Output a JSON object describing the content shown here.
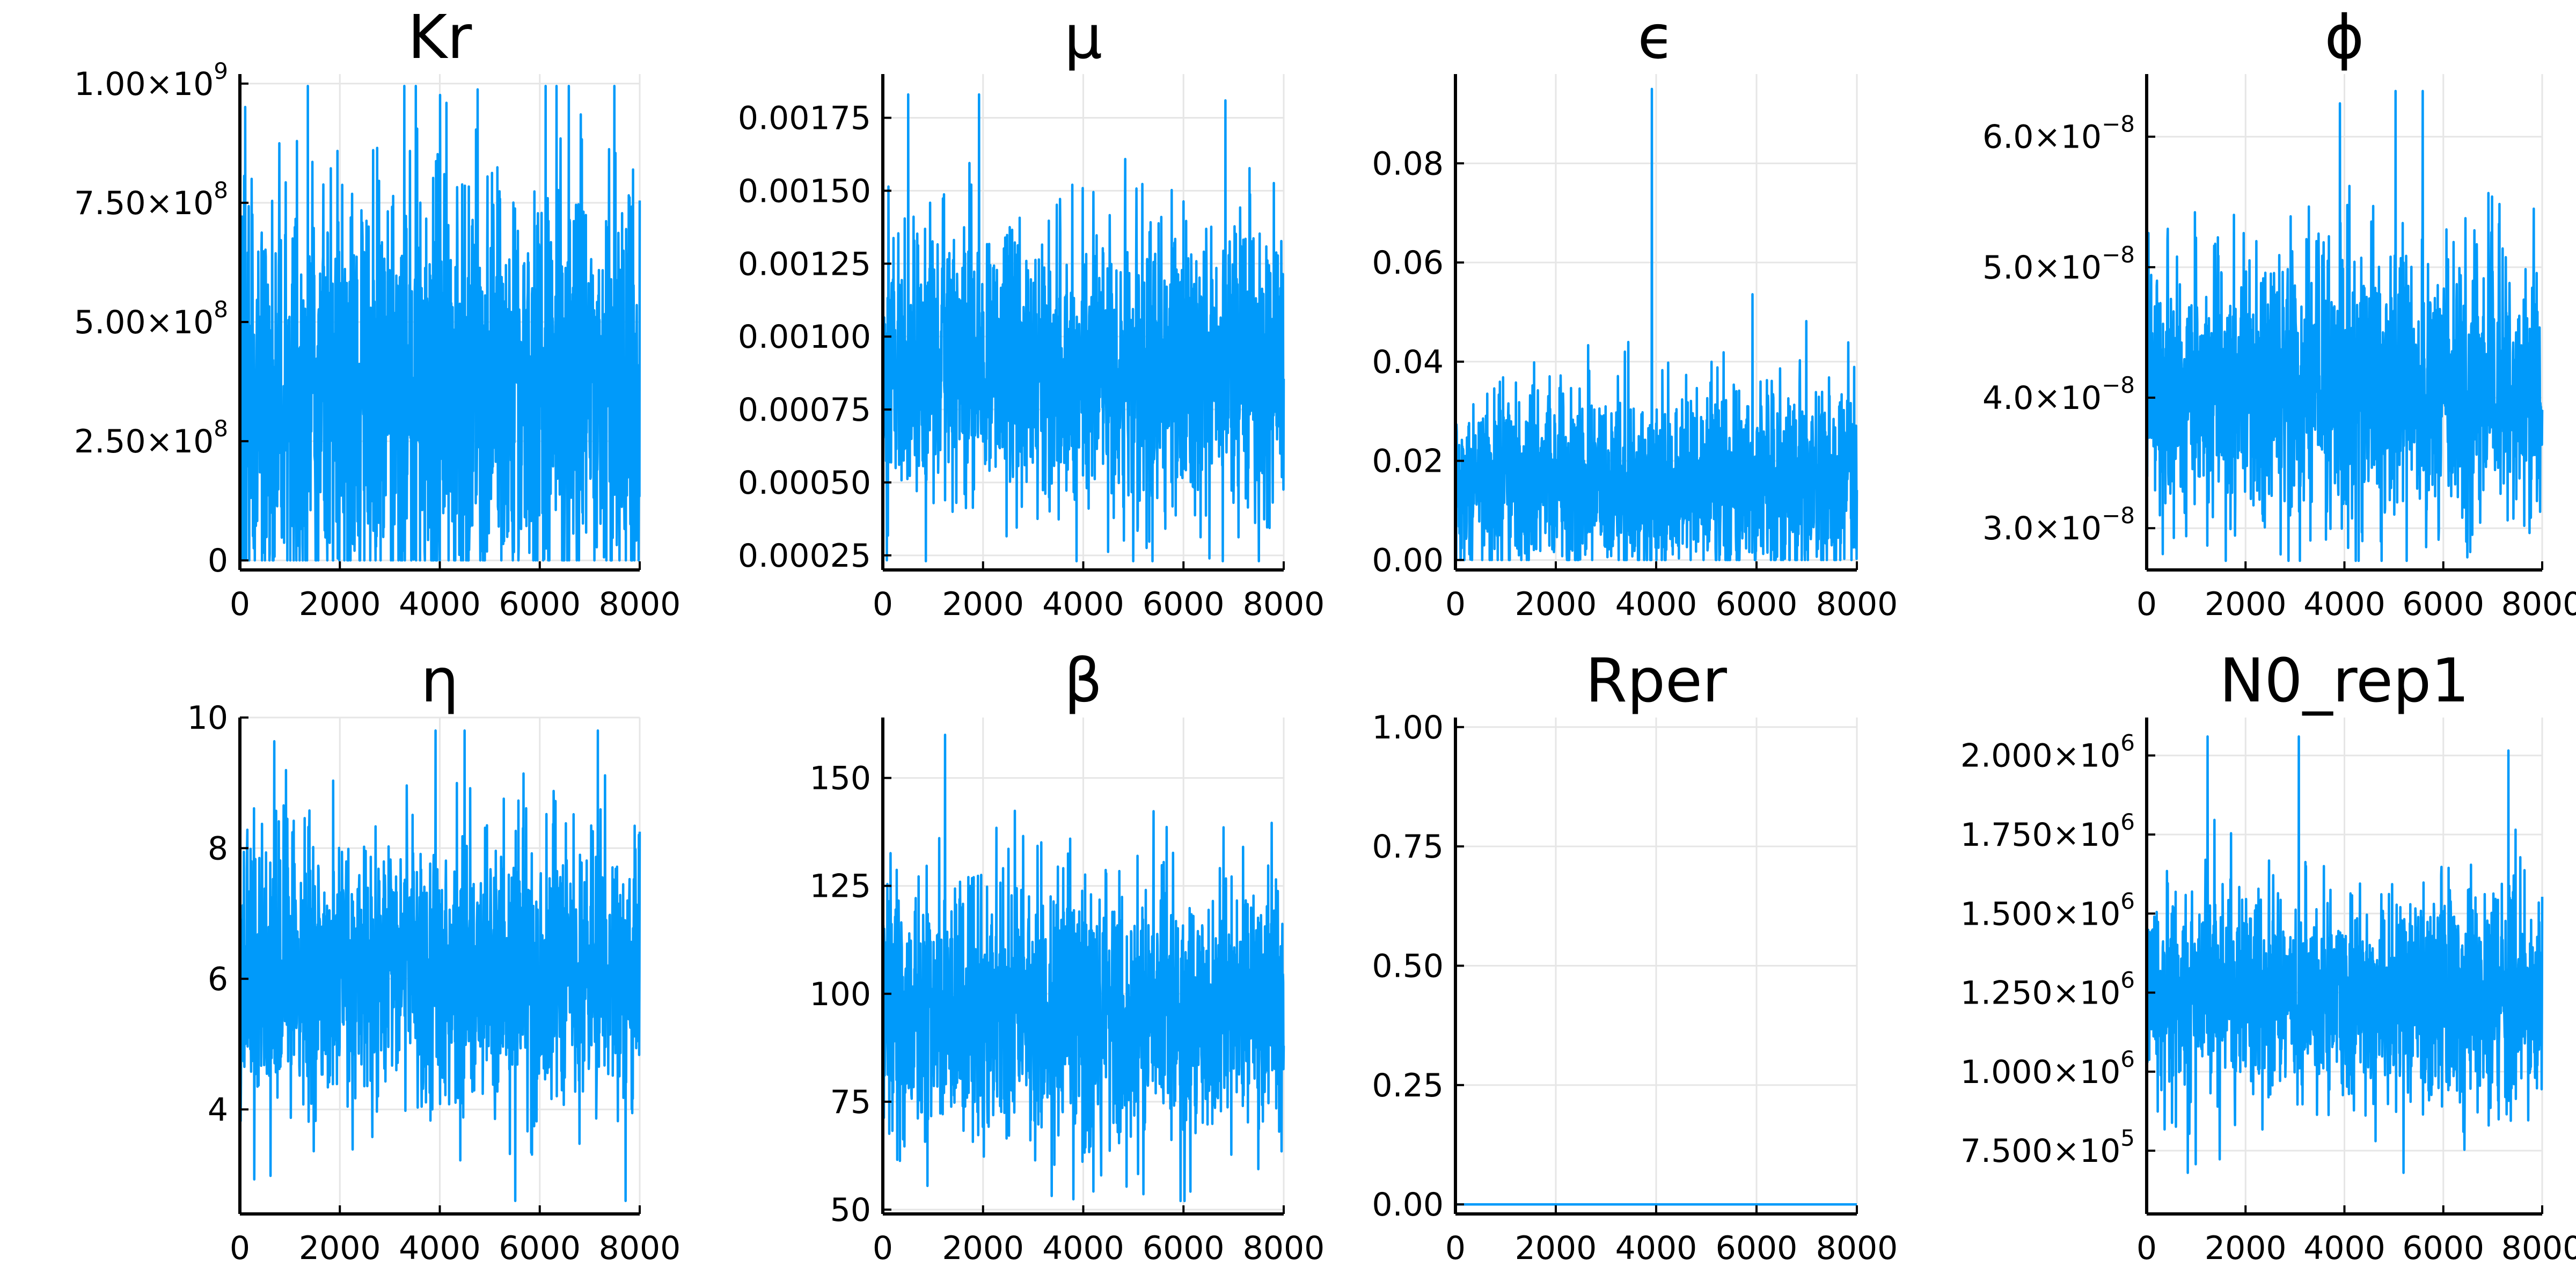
{
  "figure": {
    "accent_color": "#009AFA"
  },
  "chart_data": [
    {
      "type": "line",
      "title": "Kr",
      "xlabel": "",
      "ylabel": "",
      "xlim": [
        0,
        8000
      ],
      "ylim": [
        -20000000,
        1020000000
      ],
      "x_ticks": [
        0,
        2000,
        4000,
        6000,
        8000
      ],
      "x_tick_labels": [
        "0",
        "2000",
        "4000",
        "6000",
        "8000"
      ],
      "y_ticks": [
        0,
        250000000,
        500000000,
        750000000,
        1000000000
      ],
      "y_tick_labels": [
        {
          "mantissa": "0",
          "exponent": ""
        },
        {
          "mantissa": "2.50×10",
          "exponent": "8"
        },
        {
          "mantissa": "5.00×10",
          "exponent": "8"
        },
        {
          "mantissa": "7.50×10",
          "exponent": "8"
        },
        {
          "mantissa": "1.00×10",
          "exponent": "9"
        }
      ],
      "grid": true,
      "legend": "none",
      "series": [
        {
          "x_start": 0,
          "x_end": 8000,
          "n": 8000,
          "y_mean": 300000000,
          "y_typical_min": 1000000,
          "y_typical_max": 800000000,
          "y_extreme_min": 0,
          "y_extreme_max": 995000000
        }
      ]
    },
    {
      "type": "line",
      "title": "μ",
      "xlabel": "",
      "ylabel": "",
      "xlim": [
        0,
        8000
      ],
      "ylim": [
        0.0002,
        0.0019
      ],
      "x_ticks": [
        0,
        2000,
        4000,
        6000,
        8000
      ],
      "x_tick_labels": [
        "0",
        "2000",
        "4000",
        "6000",
        "8000"
      ],
      "y_ticks": [
        0.00025,
        0.0005,
        0.00075,
        0.001,
        0.00125,
        0.0015,
        0.00175
      ],
      "y_tick_labels": [
        {
          "mantissa": "0.00025",
          "exponent": ""
        },
        {
          "mantissa": "0.00050",
          "exponent": ""
        },
        {
          "mantissa": "0.00075",
          "exponent": ""
        },
        {
          "mantissa": "0.00100",
          "exponent": ""
        },
        {
          "mantissa": "0.00125",
          "exponent": ""
        },
        {
          "mantissa": "0.00150",
          "exponent": ""
        },
        {
          "mantissa": "0.00175",
          "exponent": ""
        }
      ],
      "grid": true,
      "legend": "none",
      "series": [
        {
          "x_start": 0,
          "x_end": 8000,
          "n": 8000,
          "y_mean": 0.00088,
          "y_typical_min": 0.0005,
          "y_typical_max": 0.00135,
          "y_extreme_min": 0.00023,
          "y_extreme_max": 0.00183
        }
      ]
    },
    {
      "type": "line",
      "title": "ϵ",
      "xlabel": "",
      "ylabel": "",
      "xlim": [
        0,
        8000
      ],
      "ylim": [
        -0.002,
        0.098
      ],
      "x_ticks": [
        0,
        2000,
        4000,
        6000,
        8000
      ],
      "x_tick_labels": [
        "0",
        "2000",
        "4000",
        "6000",
        "8000"
      ],
      "y_ticks": [
        0,
        0.02,
        0.04,
        0.06,
        0.08
      ],
      "y_tick_labels": [
        {
          "mantissa": "0.00",
          "exponent": ""
        },
        {
          "mantissa": "0.02",
          "exponent": ""
        },
        {
          "mantissa": "0.04",
          "exponent": ""
        },
        {
          "mantissa": "0.06",
          "exponent": ""
        },
        {
          "mantissa": "0.08",
          "exponent": ""
        }
      ],
      "grid": true,
      "legend": "none",
      "series": [
        {
          "x_start": 0,
          "x_end": 8000,
          "n": 8000,
          "y_mean": 0.012,
          "y_typical_min": 0.0005,
          "y_typical_max": 0.035,
          "y_extreme_min": 0.0,
          "y_extreme_max": 0.095
        }
      ]
    },
    {
      "type": "line",
      "title": "ϕ",
      "xlabel": "",
      "ylabel": "",
      "xlim": [
        0,
        8000
      ],
      "ylim": [
        2.68e-08,
        6.48e-08
      ],
      "x_ticks": [
        0,
        2000,
        4000,
        6000,
        8000
      ],
      "x_tick_labels": [
        "0",
        "2000",
        "4000",
        "6000",
        "8000"
      ],
      "y_ticks": [
        3e-08,
        4e-08,
        5e-08,
        6e-08
      ],
      "y_tick_labels": [
        {
          "mantissa": "3.0×10",
          "exponent": "−8"
        },
        {
          "mantissa": "4.0×10",
          "exponent": "−8"
        },
        {
          "mantissa": "5.0×10",
          "exponent": "−8"
        },
        {
          "mantissa": "6.0×10",
          "exponent": "−8"
        }
      ],
      "grid": true,
      "legend": "none",
      "series": [
        {
          "x_start": 0,
          "x_end": 8000,
          "n": 8000,
          "y_mean": 4e-08,
          "y_typical_min": 3.2e-08,
          "y_typical_max": 5e-08,
          "y_extreme_min": 2.75e-08,
          "y_extreme_max": 6.35e-08
        }
      ]
    },
    {
      "type": "line",
      "title": "η",
      "xlabel": "",
      "ylabel": "",
      "xlim": [
        0,
        8000
      ],
      "ylim": [
        2.4,
        10.0
      ],
      "x_ticks": [
        0,
        2000,
        4000,
        6000,
        8000
      ],
      "x_tick_labels": [
        "0",
        "2000",
        "4000",
        "6000",
        "8000"
      ],
      "y_ticks": [
        4,
        6,
        8,
        10
      ],
      "y_tick_labels": [
        {
          "mantissa": "4",
          "exponent": ""
        },
        {
          "mantissa": "6",
          "exponent": ""
        },
        {
          "mantissa": "8",
          "exponent": ""
        },
        {
          "mantissa": "10",
          "exponent": ""
        }
      ],
      "grid": true,
      "legend": "none",
      "series": [
        {
          "x_start": 0,
          "x_end": 8000,
          "n": 8000,
          "y_mean": 6.0,
          "y_typical_min": 4.2,
          "y_typical_max": 8.0,
          "y_extreme_min": 2.6,
          "y_extreme_max": 9.8
        }
      ]
    },
    {
      "type": "line",
      "title": "β",
      "xlabel": "",
      "ylabel": "",
      "xlim": [
        0,
        8000
      ],
      "ylim": [
        49,
        164
      ],
      "x_ticks": [
        0,
        2000,
        4000,
        6000,
        8000
      ],
      "x_tick_labels": [
        "0",
        "2000",
        "4000",
        "6000",
        "8000"
      ],
      "y_ticks": [
        50,
        75,
        100,
        125,
        150
      ],
      "y_tick_labels": [
        {
          "mantissa": "50",
          "exponent": ""
        },
        {
          "mantissa": "75",
          "exponent": ""
        },
        {
          "mantissa": "100",
          "exponent": ""
        },
        {
          "mantissa": "125",
          "exponent": ""
        },
        {
          "mantissa": "150",
          "exponent": ""
        }
      ],
      "grid": true,
      "legend": "none",
      "series": [
        {
          "x_start": 0,
          "x_end": 8000,
          "n": 8000,
          "y_mean": 93,
          "y_typical_min": 72,
          "y_typical_max": 125,
          "y_extreme_min": 52,
          "y_extreme_max": 160
        }
      ]
    },
    {
      "type": "line",
      "title": "Rper",
      "xlabel": "",
      "ylabel": "",
      "xlim": [
        0,
        8000
      ],
      "ylim": [
        -0.02,
        1.02
      ],
      "x_ticks": [
        0,
        2000,
        4000,
        6000,
        8000
      ],
      "x_tick_labels": [
        "0",
        "2000",
        "4000",
        "6000",
        "8000"
      ],
      "y_ticks": [
        0,
        0.25,
        0.5,
        0.75,
        1.0
      ],
      "y_tick_labels": [
        {
          "mantissa": "0.00",
          "exponent": ""
        },
        {
          "mantissa": "0.25",
          "exponent": ""
        },
        {
          "mantissa": "0.50",
          "exponent": ""
        },
        {
          "mantissa": "0.75",
          "exponent": ""
        },
        {
          "mantissa": "1.00",
          "exponent": ""
        }
      ],
      "grid": true,
      "legend": "none",
      "series": [
        {
          "x_start": 0,
          "x_end": 8000,
          "n": 8000,
          "y_constant": 0
        }
      ]
    },
    {
      "type": "line",
      "title": "N0_rep1",
      "xlabel": "",
      "ylabel": "",
      "xlim": [
        0,
        8000
      ],
      "ylim": [
        550000,
        2120000
      ],
      "x_ticks": [
        0,
        2000,
        4000,
        6000,
        8000
      ],
      "x_tick_labels": [
        "0",
        "2000",
        "4000",
        "6000",
        "8000"
      ],
      "y_ticks": [
        750000,
        1000000,
        1250000,
        1500000,
        1750000,
        2000000
      ],
      "y_tick_labels": [
        {
          "mantissa": "7.500×10",
          "exponent": "5"
        },
        {
          "mantissa": "1.000×10",
          "exponent": "6"
        },
        {
          "mantissa": "1.250×10",
          "exponent": "6"
        },
        {
          "mantissa": "1.500×10",
          "exponent": "6"
        },
        {
          "mantissa": "1.750×10",
          "exponent": "6"
        },
        {
          "mantissa": "2.000×10",
          "exponent": "6"
        }
      ],
      "grid": true,
      "legend": "none",
      "series": [
        {
          "x_start": 0,
          "x_end": 8000,
          "n": 8000,
          "y_mean": 1200000,
          "y_typical_min": 950000,
          "y_typical_max": 1550000,
          "y_extreme_min": 680000,
          "y_extreme_max": 2060000
        }
      ]
    }
  ]
}
